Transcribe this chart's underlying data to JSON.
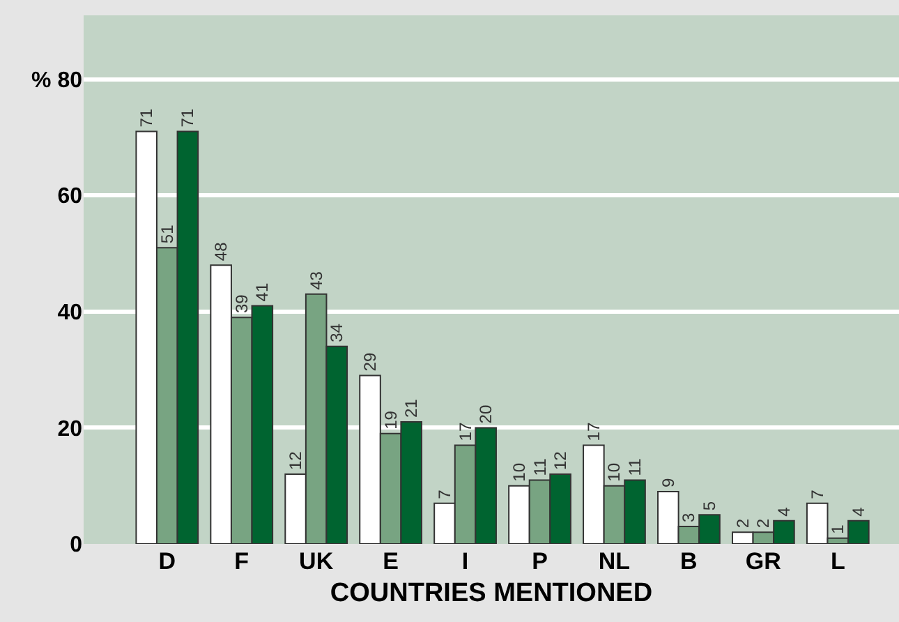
{
  "chart_data": {
    "type": "bar",
    "categories": [
      "D",
      "F",
      "UK",
      "E",
      "I",
      "P",
      "NL",
      "B",
      "GR",
      "L"
    ],
    "series": [
      {
        "color": "#ffffff",
        "values": [
          71,
          48,
          12,
          29,
          7,
          10,
          17,
          9,
          2,
          7
        ]
      },
      {
        "color": "#78a482",
        "values": [
          51,
          39,
          43,
          19,
          17,
          11,
          10,
          3,
          2,
          1
        ]
      },
      {
        "color": "#006430",
        "values": [
          71,
          41,
          34,
          21,
          20,
          12,
          11,
          5,
          4,
          4
        ]
      }
    ],
    "xlabel": "COUNTRIES MENTIONED",
    "ylim": [
      0,
      91
    ],
    "yticks": [
      0,
      20,
      40,
      60,
      {
        "value": 80,
        "label": "% 80"
      }
    ],
    "grid": "y",
    "data_labels": true
  }
}
